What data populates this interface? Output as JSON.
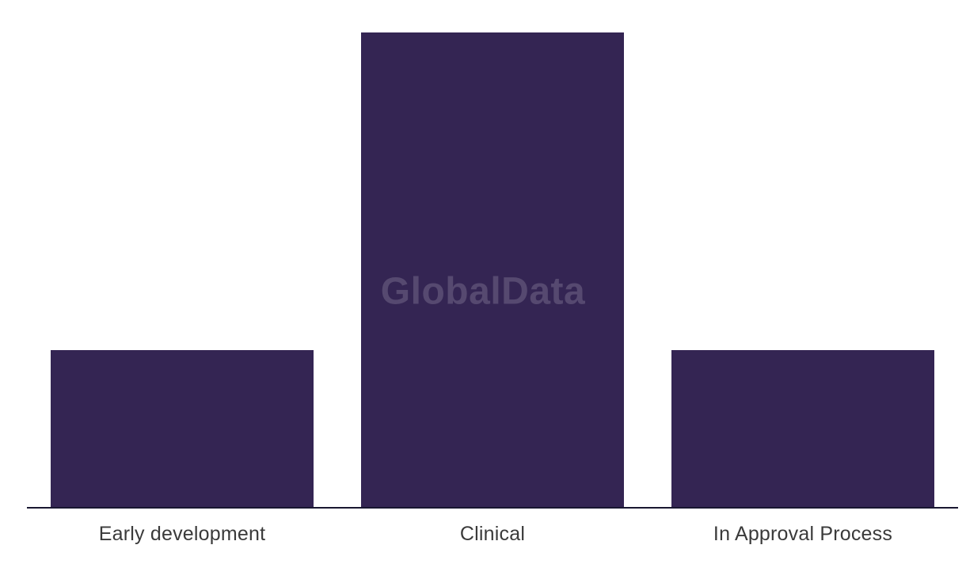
{
  "chart_data": {
    "type": "bar",
    "title": "",
    "xlabel": "",
    "ylabel": "",
    "categories": [
      "Early development",
      "Clinical",
      "In Approval Process"
    ],
    "values": [
      199,
      600,
      199
    ],
    "ylim": [
      0,
      641
    ],
    "grid": false,
    "legend": false,
    "value_axis_shown": false,
    "bar_color": "#342553",
    "axis_line_color": "#191731",
    "label_color": "#3a3a3a",
    "background_color": "#ffffff"
  },
  "watermark": {
    "text": "GlobalData",
    "color": "rgba(255,255,255,0.17)"
  }
}
